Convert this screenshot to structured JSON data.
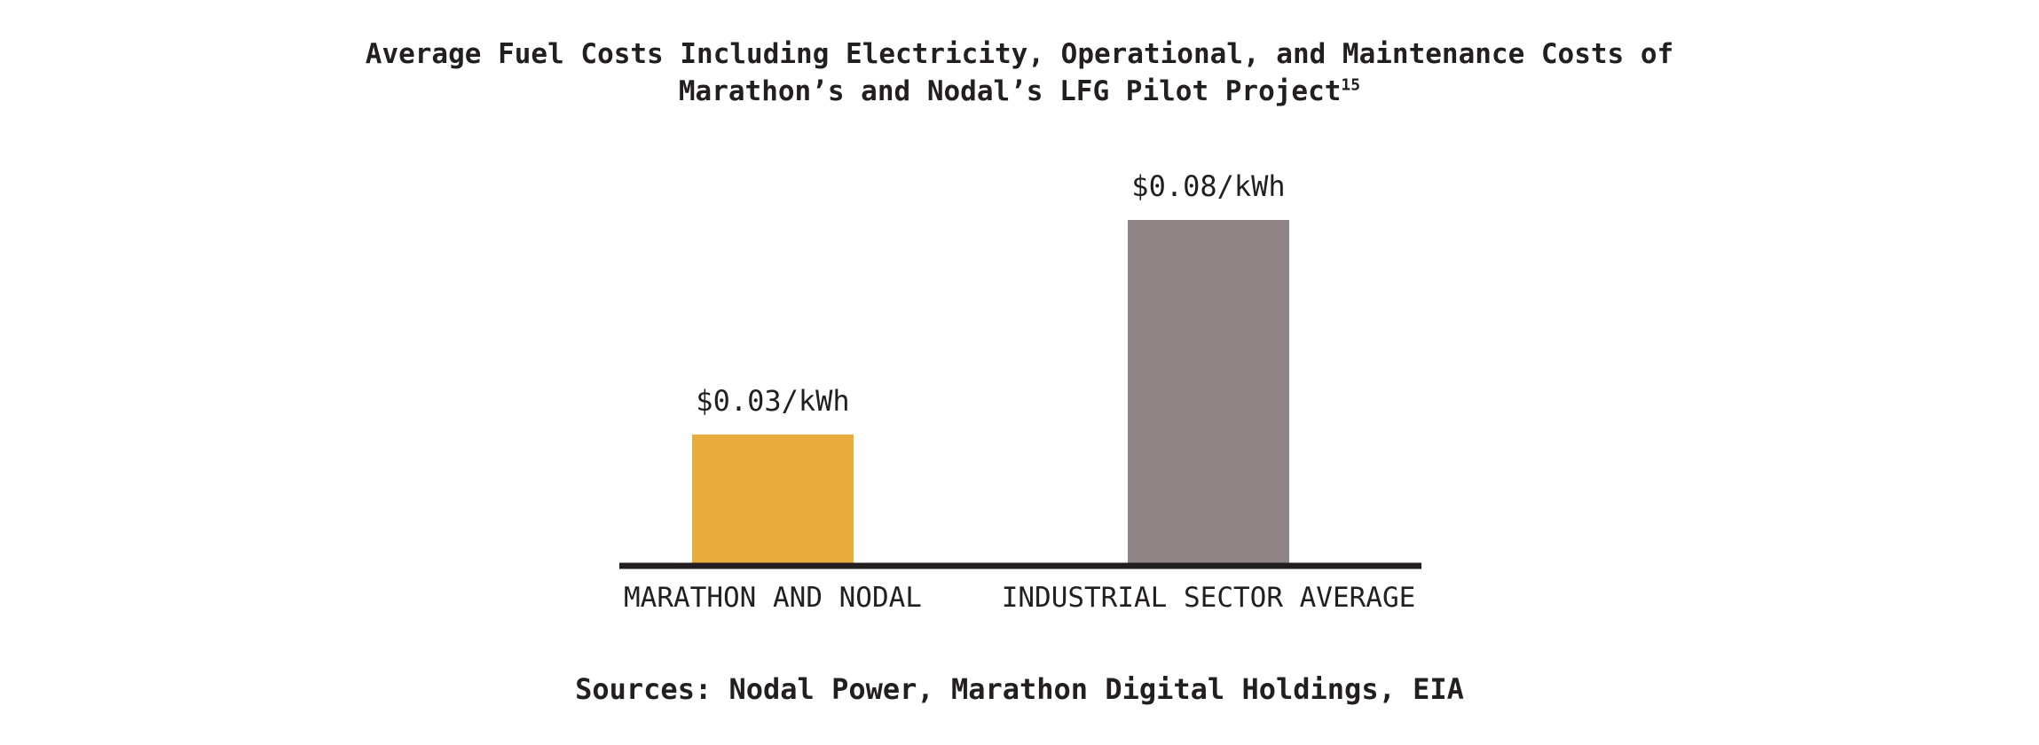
{
  "chart_data": {
    "type": "bar",
    "title_line1": "Average Fuel Costs Including Electricity, Operational, and Maintenance Costs of",
    "title_line2": "Marathon’s and Nodal’s LFG Pilot Project",
    "title_footnote": "15",
    "categories": [
      "MARATHON AND NODAL",
      "INDUSTRIAL SECTOR AVERAGE"
    ],
    "values": [
      0.03,
      0.08
    ],
    "data_labels": [
      "$0.03/kWh",
      "$0.08/kWh"
    ],
    "colors": [
      "#e8ac3c",
      "#8f8586"
    ],
    "axis_color": "#231f20",
    "ylim": [
      0,
      0.08
    ],
    "grid": false,
    "xlabel": "",
    "ylabel": "",
    "source": "Sources: Nodal Power, Marathon Digital Holdings, EIA"
  }
}
